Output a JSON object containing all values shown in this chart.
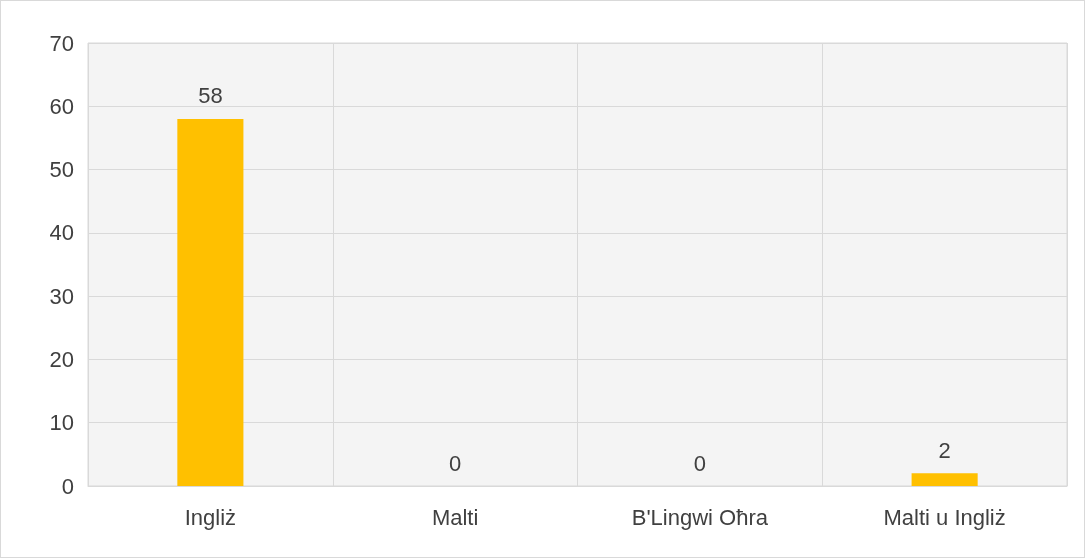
{
  "chart_data": {
    "type": "bar",
    "categories": [
      "Ingliż",
      "Malti",
      "B'Lingwi Oħra",
      "Malti u Ingliż"
    ],
    "values": [
      58,
      0,
      0,
      2
    ],
    "color": "#ffc000",
    "ylim": [
      0,
      70
    ],
    "yticks": [
      0,
      10,
      20,
      30,
      40,
      50,
      60,
      70
    ],
    "grid": true,
    "data_labels": true
  }
}
